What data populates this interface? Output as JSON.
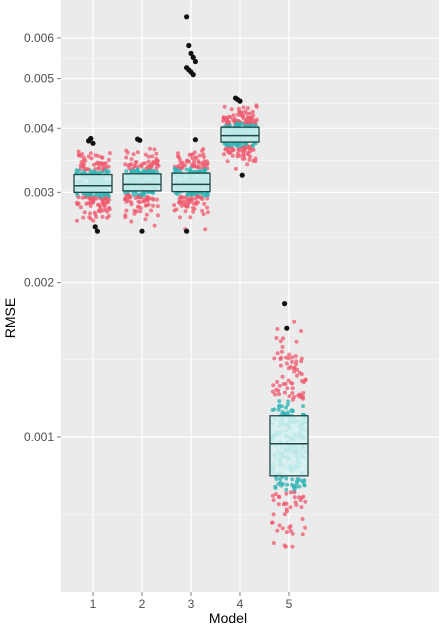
{
  "chart_data": {
    "type": "box",
    "xlabel": "Model",
    "ylabel": "RMSE",
    "y_scale": "log",
    "ylim": [
      0.00058,
      0.0066
    ],
    "grid": true,
    "colors": {
      "panel_background": "#EBEBEB",
      "gridline": "#FFFFFF",
      "points_outer": "#EF5A6E",
      "points_inner": "#2EB4B4",
      "box_fill": "#D6F1F1",
      "box_border": "#1E4748",
      "outlier": "#111111"
    },
    "x_ticks": [
      "1",
      "2",
      "3",
      "4",
      "5"
    ],
    "y_ticks": [
      {
        "value": 0.001,
        "label": "0.001"
      },
      {
        "value": 0.002,
        "label": "0.002"
      },
      {
        "value": 0.003,
        "label": "0.003"
      },
      {
        "value": 0.004,
        "label": "0.004"
      },
      {
        "value": 0.005,
        "label": "0.005"
      },
      {
        "value": 0.006,
        "label": "0.006"
      }
    ],
    "models": [
      {
        "model": "1",
        "q1": 0.003,
        "median": 0.00309,
        "q3": 0.00325,
        "points_min": 0.00252,
        "points_max": 0.00362,
        "outliers": [
          0.00378,
          0.00382,
          0.00374,
          0.00257,
          0.00252
        ]
      },
      {
        "model": "2",
        "q1": 0.00302,
        "median": 0.00311,
        "q3": 0.00326,
        "points_min": 0.00256,
        "points_max": 0.00368,
        "outliers": [
          0.00381,
          0.00379,
          0.00252
        ]
      },
      {
        "model": "3",
        "q1": 0.00301,
        "median": 0.00311,
        "q3": 0.00327,
        "points_min": 0.00254,
        "points_max": 0.00365,
        "outliers": [
          0.0066,
          0.0058,
          0.0056,
          0.0055,
          0.0054,
          0.00525,
          0.0052,
          0.00515,
          0.00509,
          0.0038,
          0.00252
        ]
      },
      {
        "model": "4",
        "q1": 0.00376,
        "median": 0.00387,
        "q3": 0.00402,
        "points_min": 0.00332,
        "points_max": 0.0045,
        "outliers": [
          0.00458,
          0.00455,
          0.00452,
          0.00324
        ]
      },
      {
        "model": "5",
        "q1": 0.00084,
        "median": 0.00097,
        "q3": 0.0011,
        "points_min": 0.00061,
        "points_max": 0.0017,
        "outliers": [
          0.00182,
          0.00163
        ]
      }
    ]
  }
}
